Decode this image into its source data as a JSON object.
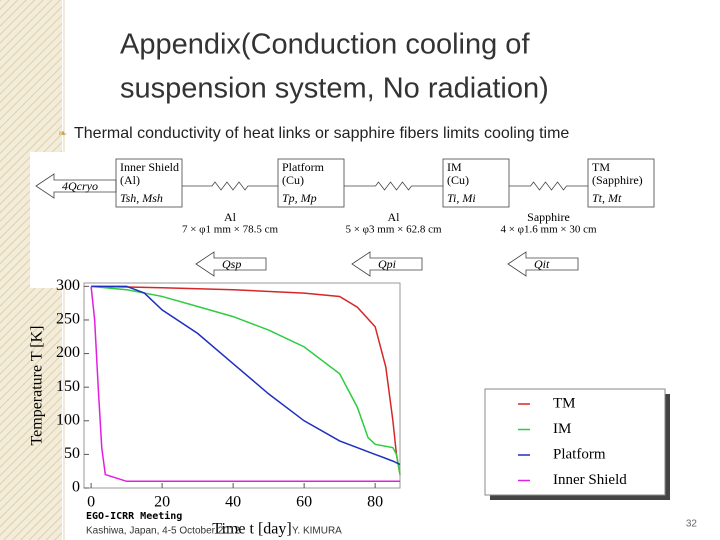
{
  "slide": {
    "title_lines": [
      "Appendix(Conduction cooling of",
      "suspension system, No radiation)"
    ],
    "bullet": "Thermal conductivity of heat links or sapphire fibers limits cooling time",
    "footer": {
      "meeting": "EGO-ICRR Meeting",
      "place": "Kashiwa, Japan, 4-5 October 2012",
      "author": "Y. KIMURA",
      "page": "32"
    }
  },
  "diagram": {
    "nodes": [
      {
        "name": "Inner Shield",
        "material": "(Al)",
        "vars": "Tsh, Msh"
      },
      {
        "name": "Platform",
        "material": "(Cu)",
        "vars": "Tp, Mp"
      },
      {
        "name": "IM",
        "material": "(Cu)",
        "vars": "Ti, Mi"
      },
      {
        "name": "TM",
        "material": "(Sapphire)",
        "vars": "Tt, Mt"
      }
    ],
    "links": [
      {
        "material": "Al",
        "size": "7 × φ1 mm × 78.5 cm"
      },
      {
        "material": "Al",
        "size": "5 × φ3 mm × 62.8 cm"
      },
      {
        "material": "Sapphire",
        "size": "4 × φ1.6 mm × 30 cm"
      }
    ],
    "heat_flows": [
      "4Qcryo",
      "Qsp",
      "Qpi",
      "Qit"
    ]
  },
  "chart_data": {
    "type": "line",
    "xlabel": "Time t [day]",
    "ylabel": "Temperature T [K]",
    "xlim": [
      -2,
      87
    ],
    "ylim": [
      0,
      305
    ],
    "xticks": [
      0,
      20,
      40,
      60,
      80
    ],
    "yticks": [
      0,
      50,
      100,
      150,
      200,
      250,
      300
    ],
    "grid": false,
    "series": [
      {
        "name": "TM",
        "color": "#d62728",
        "x": [
          0,
          20,
          40,
          60,
          70,
          75,
          80,
          83,
          85,
          86,
          87
        ],
        "values": [
          300,
          298,
          295,
          290,
          285,
          269,
          240,
          180,
          100,
          50,
          20
        ]
      },
      {
        "name": "IM",
        "color": "#2ecc40",
        "x": [
          0,
          10,
          20,
          30,
          40,
          50,
          60,
          70,
          75,
          78,
          80,
          85,
          86,
          87
        ],
        "values": [
          300,
          295,
          285,
          270,
          255,
          235,
          210,
          170,
          120,
          75,
          65,
          60,
          50,
          20
        ]
      },
      {
        "name": "Platform",
        "color": "#1f2fbf",
        "x": [
          0,
          10,
          15,
          20,
          30,
          40,
          50,
          60,
          70,
          80,
          85,
          87
        ],
        "values": [
          300,
          300,
          290,
          265,
          230,
          185,
          140,
          100,
          70,
          50,
          40,
          35
        ]
      },
      {
        "name": "Inner Shield",
        "color": "#e020e0",
        "x": [
          0,
          1,
          2,
          3,
          4,
          10,
          87
        ],
        "values": [
          300,
          250,
          150,
          60,
          20,
          10,
          10
        ]
      }
    ]
  }
}
